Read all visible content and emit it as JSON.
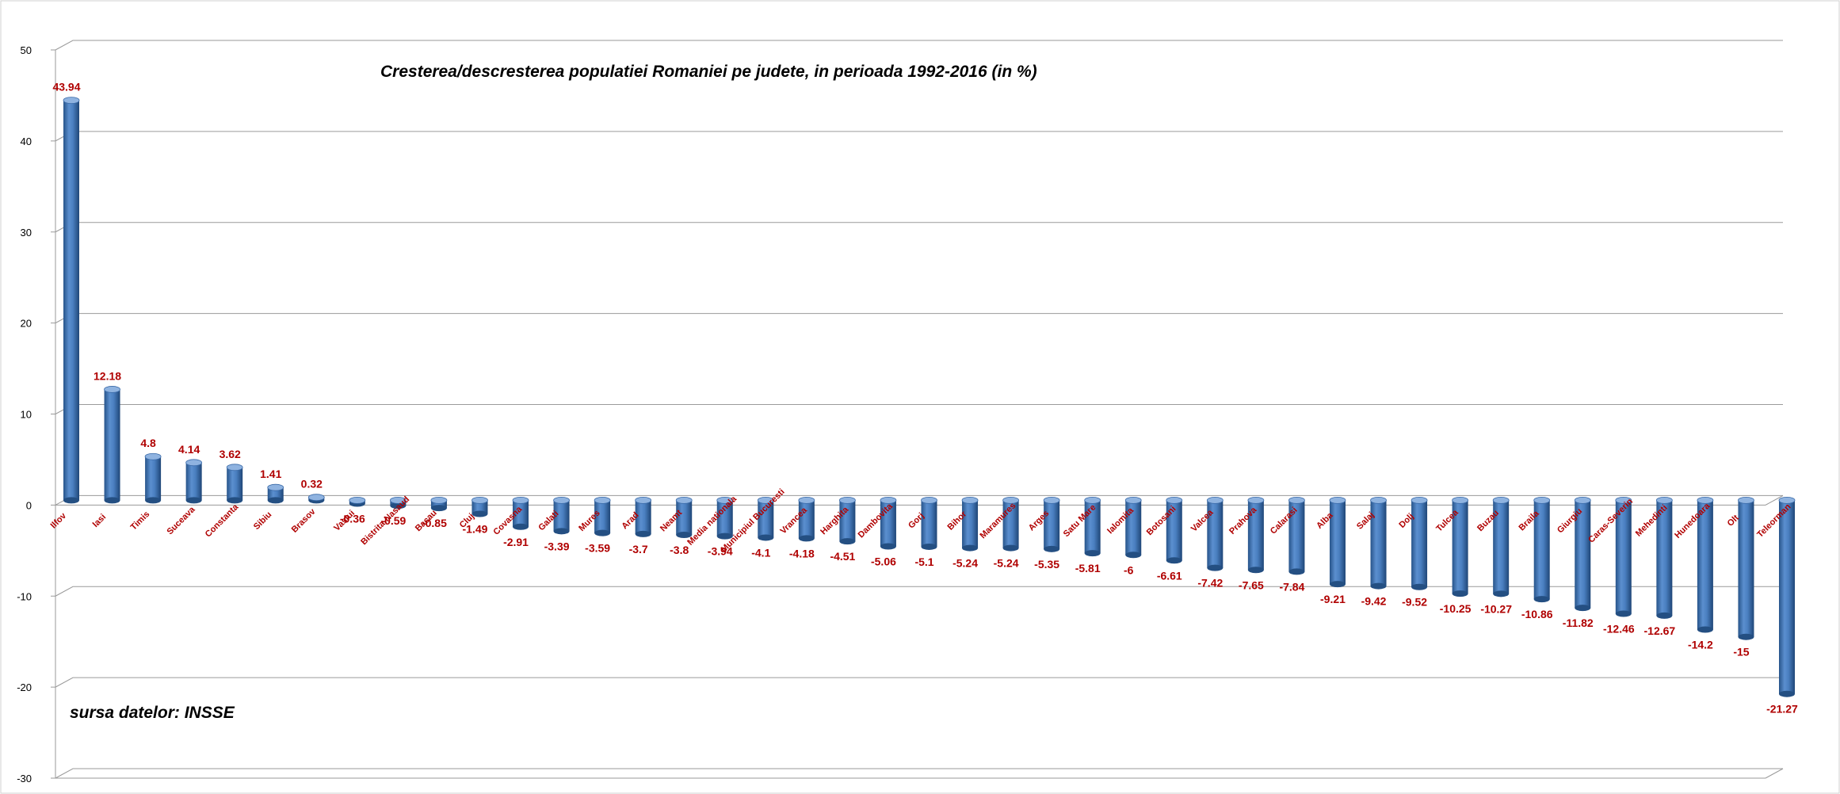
{
  "chart_data": {
    "type": "bar",
    "title": "Cresterea/descresterea populatiei Romaniei pe judete, in perioada 1992-2016 (in %)",
    "source_note": "sursa datelor: INSSE",
    "xlabel": "",
    "ylabel": "",
    "ylim": [
      -30,
      50
    ],
    "yticks": [
      -30,
      -20,
      -10,
      0,
      10,
      20,
      30,
      40,
      50
    ],
    "grid": true,
    "legend": "none",
    "categories": [
      "Ilfov",
      "Iasi",
      "Timis",
      "Suceava",
      "Constanta",
      "Sibiu",
      "Brasov",
      "Vaslui",
      "Bistrita-Nasaud",
      "Bacau",
      "Cluj",
      "Covasna",
      "Galati",
      "Mures",
      "Arad",
      "Neamt",
      "Media nationala",
      "Municipiul Bucuresti",
      "Vrancea",
      "Harghita",
      "Dambovita",
      "Gorj",
      "Bihor",
      "Maramures",
      "Arges",
      "Satu Mare",
      "Ialomita",
      "Botosani",
      "Valcea",
      "Prahova",
      "Calarasi",
      "Alba",
      "Salaj",
      "Dolj",
      "Tulcea",
      "Buzau",
      "Braila",
      "Giurgiu",
      "Caras-Severin",
      "Mehedinti",
      "Hunedoara",
      "Olt",
      "Teleorman"
    ],
    "values": [
      43.94,
      12.18,
      4.8,
      4.14,
      3.62,
      1.41,
      0.32,
      -0.36,
      -0.59,
      -0.85,
      -1.49,
      -2.91,
      -3.39,
      -3.59,
      -3.7,
      -3.8,
      -3.94,
      -4.1,
      -4.18,
      -4.51,
      -5.06,
      -5.1,
      -5.24,
      -5.24,
      -5.35,
      -5.81,
      -6,
      -6.61,
      -7.42,
      -7.65,
      -7.84,
      -9.21,
      -9.42,
      -9.52,
      -10.25,
      -10.27,
      -10.86,
      -11.82,
      -12.46,
      -12.67,
      -14.2,
      -15,
      -21.27
    ],
    "value_labels": [
      "43.94",
      "12.18",
      "4.8",
      "4.14",
      "3.62",
      "1.41",
      "0.32",
      "-0.36",
      "-0.59",
      "-0.85",
      "-1.49",
      "-2.91",
      "-3.39",
      "-3.59",
      "-3.7",
      "-3.8",
      "-3.94",
      "-4.1",
      "-4.18",
      "-4.51",
      "-5.06",
      "-5.1",
      "-5.24",
      "-5.24",
      "-5.35",
      "-5.81",
      "-6",
      "-6.61",
      "-7.42",
      "-7.65",
      "-7.84",
      "-9.21",
      "-9.42",
      "-9.52",
      "-10.25",
      "-10.27",
      "-10.86",
      "-11.82",
      "-12.46",
      "-12.67",
      "-14.2",
      "-15",
      "-21.27"
    ],
    "colors": {
      "bar": "#4f81bd",
      "bar_dark": "#2c5a8f",
      "bar_light": "#8fb3e0",
      "label": "#b00000",
      "grid": "#9a9a9a"
    }
  }
}
